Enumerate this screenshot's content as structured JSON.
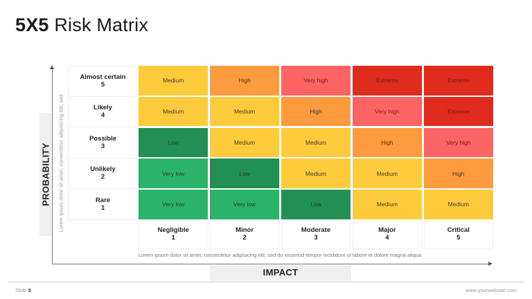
{
  "title": {
    "bold": "5X5",
    "light": "Risk Matrix"
  },
  "probability": {
    "axis_label": "PROBABILITY",
    "description": "Lorem ipsum dolor sit amet, consectetur adipisicing elit, sed",
    "rows": [
      {
        "label": "Almost certain",
        "value": "5"
      },
      {
        "label": "Likely",
        "value": "4"
      },
      {
        "label": "Possible",
        "value": "3"
      },
      {
        "label": "Unlikely",
        "value": "2"
      },
      {
        "label": "Rare",
        "value": "1"
      }
    ]
  },
  "impact": {
    "axis_label": "IMPACT",
    "description": "Lorem ipsum dolor sit amet, consectetur adipisicing elit, sed do eiusmod tempor incididunt ut labore et dolore magna aliqua.",
    "columns": [
      {
        "label": "Negligible",
        "value": "1"
      },
      {
        "label": "Minor",
        "value": "2"
      },
      {
        "label": "Moderate",
        "value": "3"
      },
      {
        "label": "Major",
        "value": "4"
      },
      {
        "label": "Critical",
        "value": "5"
      }
    ]
  },
  "level_colors": {
    "Very low": "#2bb36a",
    "Low": "#228f55",
    "Medium": "#fdcb3c",
    "High": "#fd9b3e",
    "Very high": "#fd6466",
    "Extreme": "#e02b1f"
  },
  "matrix": [
    [
      "Medium",
      "High",
      "Very high",
      "Extreme",
      "Extreme"
    ],
    [
      "Medium",
      "Medium",
      "High",
      "Very high",
      "Extreme"
    ],
    [
      "Low",
      "Medium",
      "Medium",
      "High",
      "Very high"
    ],
    [
      "Very low",
      "Low",
      "Medium",
      "Medium",
      "High"
    ],
    [
      "Very low",
      "Very low",
      "Low",
      "Medium",
      "Medium"
    ]
  ],
  "footer": {
    "slide_prefix": "Slide",
    "slide_number": "5",
    "website": "www.yourwebsite.com"
  }
}
